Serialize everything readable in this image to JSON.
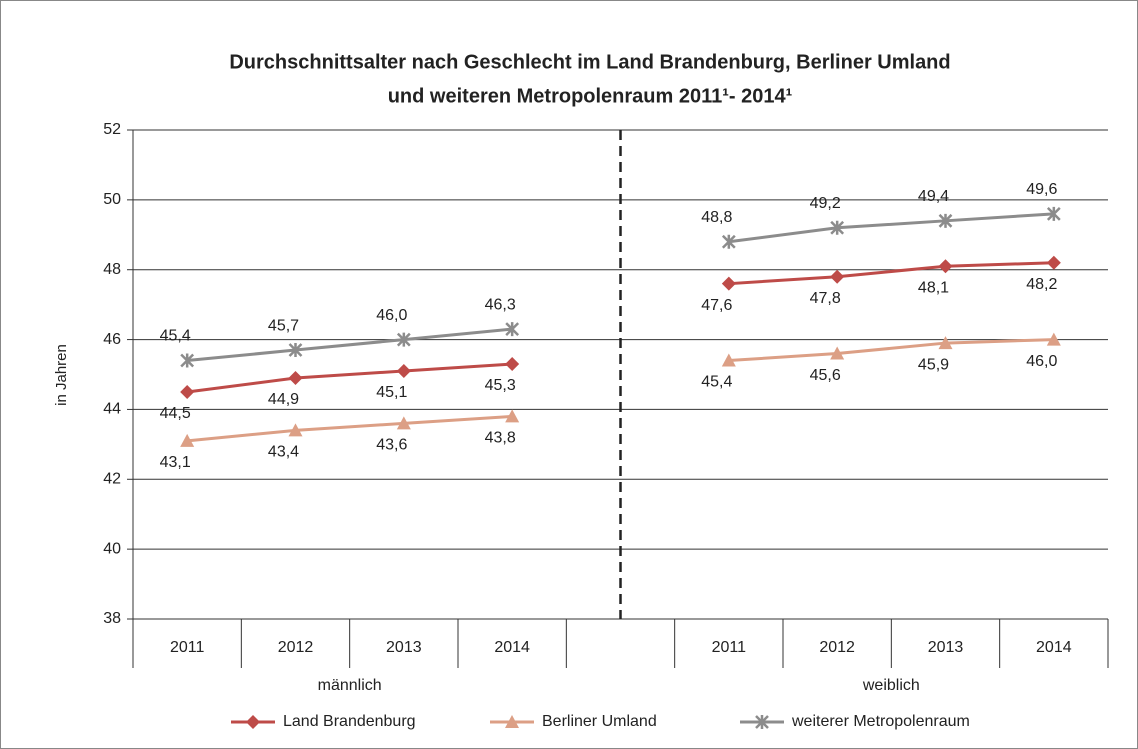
{
  "chart_data": {
    "type": "line",
    "title": [
      "Durchschnittsalter nach Geschlecht im Land Brandenburg, Berliner Umland",
      "und weiteren Metropolenraum 2011¹- 2014¹"
    ],
    "ylabel": "in Jahren",
    "categories": [
      "2011",
      "2012",
      "2013",
      "2014",
      null,
      "2011",
      "2012",
      "2013",
      "2014"
    ],
    "groups": [
      "männlich",
      "weiblich"
    ],
    "series": [
      {
        "name": "Land Brandenburg",
        "color": "#be4b48",
        "marker": "diamond",
        "values": [
          44.5,
          44.9,
          45.1,
          45.3,
          null,
          47.6,
          47.8,
          48.1,
          48.2
        ],
        "value_labels": [
          "44,5",
          "44,9",
          "45,1",
          "45,3",
          null,
          "47,6",
          "47,8",
          "48,1",
          "48,2"
        ]
      },
      {
        "name": "Berliner Umland",
        "color": "#dc9f85",
        "marker": "triangle",
        "values": [
          43.1,
          43.4,
          43.6,
          43.8,
          null,
          45.4,
          45.6,
          45.9,
          46.0
        ],
        "value_labels": [
          "43,1",
          "43,4",
          "43,6",
          "43,8",
          null,
          "45,4",
          "45,6",
          "45,9",
          "46,0"
        ]
      },
      {
        "name": "weiterer Metropolenraum",
        "color": "#8c8c8c",
        "marker": "asterisk",
        "values": [
          45.4,
          45.7,
          46.0,
          46.3,
          null,
          48.8,
          49.2,
          49.4,
          49.6
        ],
        "value_labels": [
          "45,4",
          "45,7",
          "46,0",
          "46,3",
          null,
          "48,8",
          "49,2",
          "49,4",
          "49,6"
        ]
      }
    ],
    "ylim": [
      38,
      52
    ],
    "yticks": [
      38,
      40,
      42,
      44,
      46,
      48,
      50,
      52
    ],
    "grid": true,
    "legend": "bottom"
  }
}
